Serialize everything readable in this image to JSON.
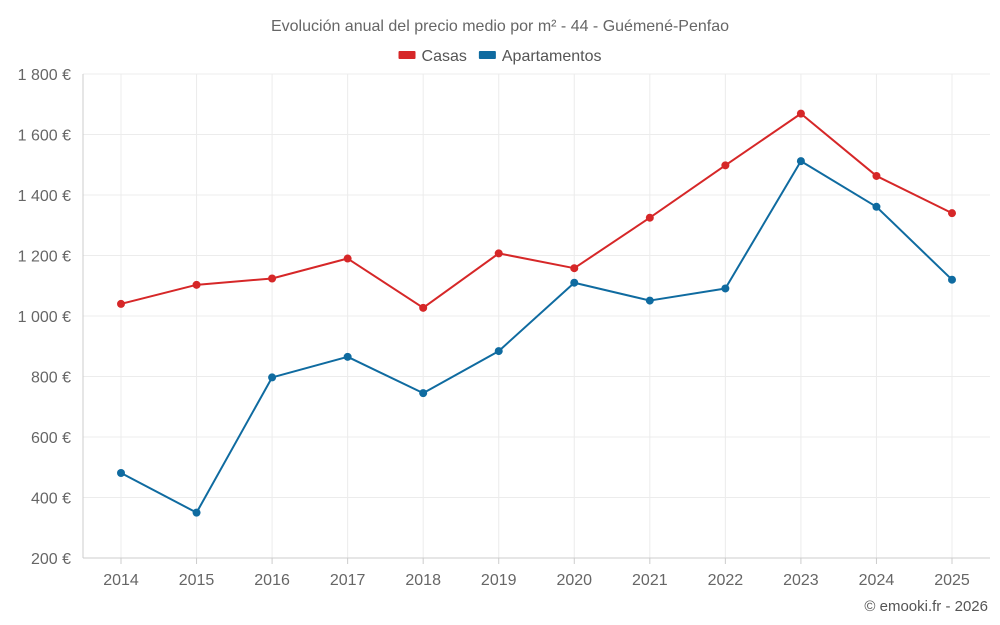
{
  "chart_data": {
    "type": "line",
    "title": "Evolución anual del precio medio por m² - 44 - Guémené-Penfao",
    "categories": [
      "2014",
      "2015",
      "2016",
      "2017",
      "2018",
      "2019",
      "2020",
      "2021",
      "2022",
      "2023",
      "2024",
      "2025"
    ],
    "series": [
      {
        "name": "Casas",
        "color": "#d62728",
        "values": [
          1040,
          1103,
          1124,
          1190,
          1027,
          1207,
          1158,
          1325,
          1498,
          1669,
          1463,
          1340
        ]
      },
      {
        "name": "Apartamentos",
        "color": "#0f6ba0",
        "values": [
          481,
          350,
          797,
          865,
          745,
          884,
          1110,
          1051,
          1091,
          1512,
          1361,
          1120
        ]
      }
    ],
    "y_ticks": [
      200,
      400,
      600,
      800,
      1000,
      1200,
      1400,
      1600,
      1800
    ],
    "y_tick_labels": [
      "200 €",
      "400 €",
      "600 €",
      "800 €",
      "1 000 €",
      "1 200 €",
      "1 400 €",
      "1 600 €",
      "1 800 €"
    ],
    "ylim": [
      200,
      1800
    ],
    "xlabel": "",
    "ylabel": "",
    "grid": true,
    "legend_position": "top-center"
  },
  "credit": "© emooki.fr - 2026"
}
